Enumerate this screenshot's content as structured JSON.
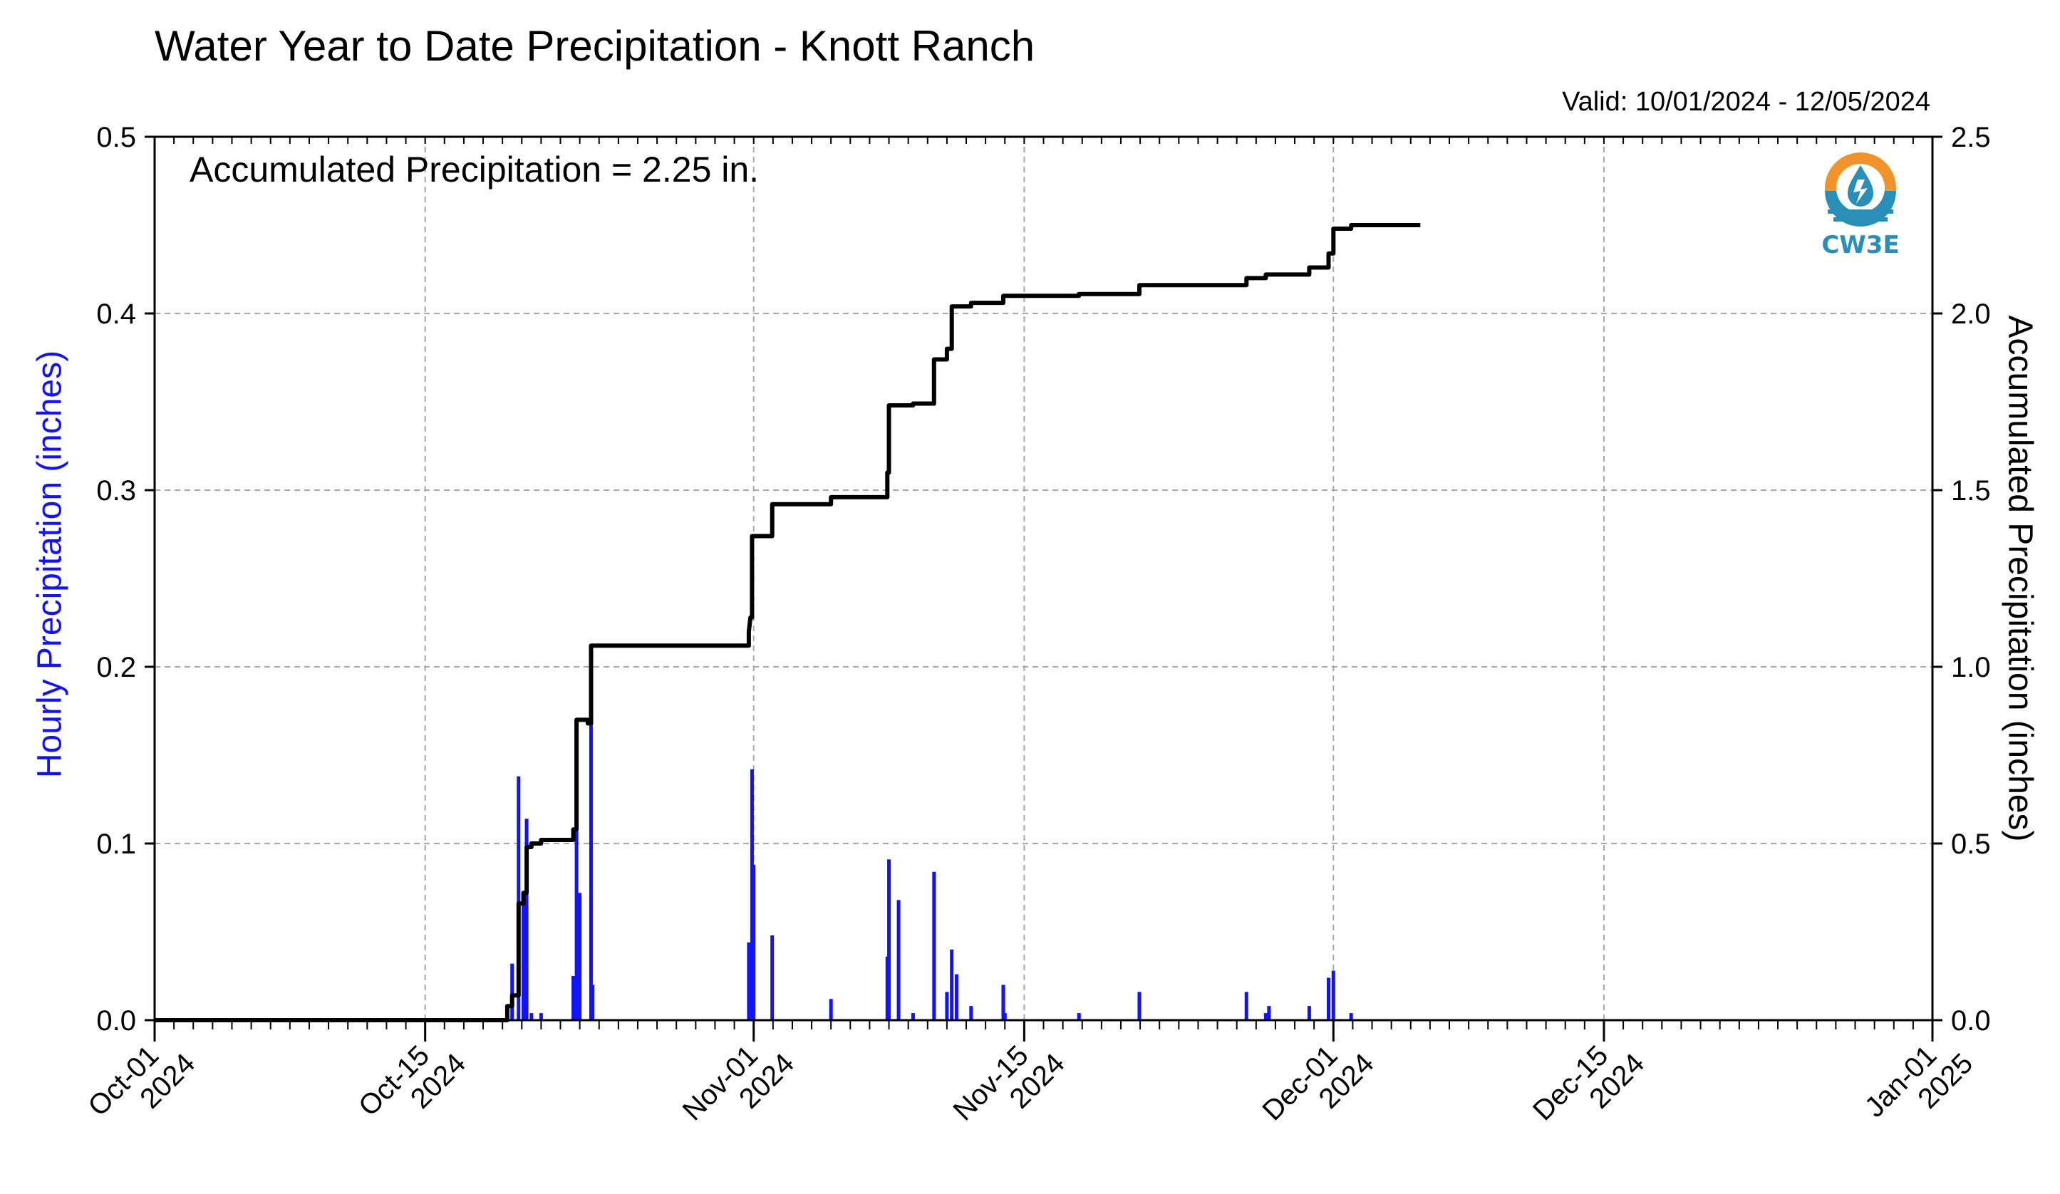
{
  "title": "Water Year to Date Precipitation - Knott Ranch",
  "valid_range": "Valid: 10/01/2024 - 12/05/2024",
  "annotation": "Accumulated Precipitation = 2.25 in.",
  "logo": {
    "text": "CW3E",
    "icon": "cw3e-water-drop-logo",
    "colors": {
      "ring": "#f0932b",
      "waves": "#2a8fb8"
    }
  },
  "chart_data": {
    "type": "bar+line",
    "x_axis": {
      "type": "date",
      "range": [
        "2024-10-01",
        "2025-01-01"
      ],
      "ticks": [
        {
          "date": "2024-10-01",
          "label": [
            "Oct-01",
            "2024"
          ]
        },
        {
          "date": "2024-10-15",
          "label": [
            "Oct-15",
            "2024"
          ]
        },
        {
          "date": "2024-11-01",
          "label": [
            "Nov-01",
            "2024"
          ]
        },
        {
          "date": "2024-11-15",
          "label": [
            "Nov-15",
            "2024"
          ]
        },
        {
          "date": "2024-12-01",
          "label": [
            "Dec-01",
            "2024"
          ]
        },
        {
          "date": "2024-12-15",
          "label": [
            "Dec-15",
            "2024"
          ]
        },
        {
          "date": "2025-01-01",
          "label": [
            "Jan-01",
            "2025"
          ]
        }
      ]
    },
    "y_left": {
      "label": "Hourly Precipitation (inches)",
      "range": [
        0,
        0.5
      ],
      "ticks": [
        "0.0",
        "0.1",
        "0.2",
        "0.3",
        "0.4",
        "0.5"
      ],
      "color": "#1212ff"
    },
    "y_right": {
      "label": "Accumulated Precipitation (inches)",
      "range": [
        0,
        2.5
      ],
      "ticks": [
        "0.0",
        "0.5",
        "1.0",
        "1.5",
        "2.0",
        "2.5"
      ]
    },
    "grid": true,
    "series": [
      {
        "axis": "left",
        "kind": "bar",
        "color": "#1212ff",
        "points": [
          [
            "2024-10-19 06:00",
            0.008
          ],
          [
            "2024-10-19 12:00",
            0.032
          ],
          [
            "2024-10-19 20:00",
            0.138
          ],
          [
            "2024-10-20 02:00",
            0.07
          ],
          [
            "2024-10-20 06:00",
            0.114
          ],
          [
            "2024-10-20 12:00",
            0.004
          ],
          [
            "2024-10-21 00:00",
            0.004
          ],
          [
            "2024-10-22 16:00",
            0.025
          ],
          [
            "2024-10-22 20:00",
            0.17
          ],
          [
            "2024-10-23 00:00",
            0.072
          ],
          [
            "2024-10-23 14:00",
            0.17
          ],
          [
            "2024-10-23 16:00",
            0.02
          ],
          [
            "2024-10-31 18:00",
            0.044
          ],
          [
            "2024-10-31 22:00",
            0.142
          ],
          [
            "2024-11-01 00:00",
            0.088
          ],
          [
            "2024-11-01 23:00",
            0.048
          ],
          [
            "2024-11-05 00:00",
            0.012
          ],
          [
            "2024-11-07 22:00",
            0.036
          ],
          [
            "2024-11-08 00:00",
            0.091
          ],
          [
            "2024-11-08 12:00",
            0.068
          ],
          [
            "2024-11-09 06:00",
            0.004
          ],
          [
            "2024-11-10 08:00",
            0.084
          ],
          [
            "2024-11-11 00:00",
            0.016
          ],
          [
            "2024-11-11 06:00",
            0.04
          ],
          [
            "2024-11-11 12:00",
            0.026
          ],
          [
            "2024-11-12 06:00",
            0.008
          ],
          [
            "2024-11-13 22:00",
            0.02
          ],
          [
            "2024-11-14 00:00",
            0.004
          ],
          [
            "2024-11-17 20:00",
            0.004
          ],
          [
            "2024-11-20 23:00",
            0.016
          ],
          [
            "2024-11-26 12:00",
            0.016
          ],
          [
            "2024-11-27 12:00",
            0.004
          ],
          [
            "2024-11-27 16:00",
            0.008
          ],
          [
            "2024-11-29 18:00",
            0.008
          ],
          [
            "2024-11-30 18:00",
            0.024
          ],
          [
            "2024-12-01 00:00",
            0.028
          ],
          [
            "2024-12-01 22:00",
            0.004
          ]
        ]
      },
      {
        "axis": "right",
        "kind": "line",
        "color": "#000000",
        "points": [
          [
            "2024-10-01 00:00",
            0.0
          ],
          [
            "2024-10-19 06:00",
            0.0
          ],
          [
            "2024-10-19 06:00",
            0.04
          ],
          [
            "2024-10-19 12:00",
            0.04
          ],
          [
            "2024-10-19 12:00",
            0.07
          ],
          [
            "2024-10-19 20:00",
            0.07
          ],
          [
            "2024-10-19 20:00",
            0.33
          ],
          [
            "2024-10-20 02:00",
            0.33
          ],
          [
            "2024-10-20 02:00",
            0.36
          ],
          [
            "2024-10-20 06:00",
            0.36
          ],
          [
            "2024-10-20 06:00",
            0.49
          ],
          [
            "2024-10-20 12:00",
            0.49
          ],
          [
            "2024-10-20 12:00",
            0.5
          ],
          [
            "2024-10-21 00:00",
            0.5
          ],
          [
            "2024-10-21 00:00",
            0.51
          ],
          [
            "2024-10-22 16:00",
            0.51
          ],
          [
            "2024-10-22 16:00",
            0.54
          ],
          [
            "2024-10-22 20:00",
            0.54
          ],
          [
            "2024-10-22 20:00",
            0.85
          ],
          [
            "2024-10-23 10:00",
            0.85
          ],
          [
            "2024-10-23 10:00",
            0.84
          ],
          [
            "2024-10-23 14:00",
            0.84
          ],
          [
            "2024-10-23 14:00",
            1.06
          ],
          [
            "2024-10-31 18:00",
            1.06
          ],
          [
            "2024-10-31 18:00",
            1.1
          ],
          [
            "2024-10-31 20:00",
            1.14
          ],
          [
            "2024-10-31 22:00",
            1.14
          ],
          [
            "2024-10-31 22:00",
            1.37
          ],
          [
            "2024-11-01 23:00",
            1.37
          ],
          [
            "2024-11-01 23:00",
            1.46
          ],
          [
            "2024-11-05 00:00",
            1.46
          ],
          [
            "2024-11-05 00:00",
            1.48
          ],
          [
            "2024-11-07 22:00",
            1.48
          ],
          [
            "2024-11-07 22:00",
            1.55
          ],
          [
            "2024-11-08 00:00",
            1.55
          ],
          [
            "2024-11-08 00:00",
            1.74
          ],
          [
            "2024-11-09 06:00",
            1.74
          ],
          [
            "2024-11-09 06:00",
            1.745
          ],
          [
            "2024-11-10 08:00",
            1.745
          ],
          [
            "2024-11-10 08:00",
            1.87
          ],
          [
            "2024-11-11 00:00",
            1.87
          ],
          [
            "2024-11-11 00:00",
            1.9
          ],
          [
            "2024-11-11 06:00",
            1.9
          ],
          [
            "2024-11-11 06:00",
            2.02
          ],
          [
            "2024-11-12 06:00",
            2.02
          ],
          [
            "2024-11-12 06:00",
            2.03
          ],
          [
            "2024-11-13 22:00",
            2.03
          ],
          [
            "2024-11-13 22:00",
            2.05
          ],
          [
            "2024-11-17 20:00",
            2.05
          ],
          [
            "2024-11-17 20:00",
            2.055
          ],
          [
            "2024-11-20 23:00",
            2.055
          ],
          [
            "2024-11-20 23:00",
            2.08
          ],
          [
            "2024-11-26 12:00",
            2.08
          ],
          [
            "2024-11-26 12:00",
            2.1
          ],
          [
            "2024-11-27 12:00",
            2.1
          ],
          [
            "2024-11-27 12:00",
            2.11
          ],
          [
            "2024-11-29 18:00",
            2.11
          ],
          [
            "2024-11-29 18:00",
            2.13
          ],
          [
            "2024-11-30 18:00",
            2.13
          ],
          [
            "2024-11-30 18:00",
            2.17
          ],
          [
            "2024-12-01 00:00",
            2.17
          ],
          [
            "2024-12-01 00:00",
            2.24
          ],
          [
            "2024-12-01 22:00",
            2.24
          ],
          [
            "2024-12-01 22:00",
            2.25
          ],
          [
            "2024-12-05 12:00",
            2.25
          ]
        ]
      }
    ]
  }
}
